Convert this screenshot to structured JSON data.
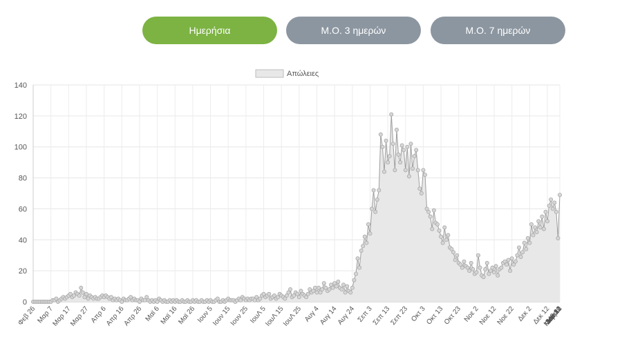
{
  "buttons": {
    "daily_label": "Ημερήσια",
    "ma3_label": "Μ.Ο. 3 ημερών",
    "ma7_label": "Μ.Ο. 7 ημερών",
    "active_color": "#7cb342",
    "inactive_color": "#8c96a0"
  },
  "chart_data": {
    "type": "line",
    "legend": [
      "Απώλειες"
    ],
    "legend_position": "top",
    "grid": true,
    "ylim": [
      0,
      140
    ],
    "yticks": [
      0,
      20,
      40,
      60,
      80,
      100,
      120,
      140
    ],
    "xlabel": "",
    "ylabel": "",
    "x_tick_labels": [
      "Φεβ 26",
      "Μαρ 7",
      "Μαρ 17",
      "Μαρ 27",
      "Απρ 6",
      "Απρ 16",
      "Απρ 26",
      "Μαϊ 6",
      "Μαϊ 16",
      "Μαϊ 26",
      "Ιουν 5",
      "Ιουν 15",
      "Ιουν 25",
      "ΙουΛ 5",
      "ΙουΛ 15",
      "ΙουΛ 25",
      "Αυγ 4",
      "Αυγ 14",
      "Αυγ 24",
      "Σεπ 3",
      "Σεπ 13",
      "Σεπ 23",
      "Οκτ 3",
      "Οκτ 13",
      "Οκτ 23",
      "Νοε 2",
      "Νοε 12",
      "Νοε 22",
      "Δεκ 2",
      "Δεκ 12",
      "Δεκ 22",
      "Ιαν 1",
      "Ιαν 11",
      "Ιαν 21",
      "Ιαν 31",
      "Φεβ 10",
      "Φεβ 20",
      "Μαρ 2",
      "Μαρ 12",
      "Μαρ 22"
    ],
    "series": [
      {
        "name": "Απώλειες",
        "fill": "#e8e8e8",
        "line_color": "#9e9e9e",
        "values": [
          0,
          0,
          0,
          0,
          0,
          0,
          0,
          0,
          0,
          0,
          0,
          1,
          1,
          2,
          0,
          1,
          2,
          3,
          2,
          3,
          4,
          5,
          3,
          4,
          6,
          5,
          4,
          9,
          6,
          3,
          5,
          2,
          4,
          3,
          2,
          3,
          2,
          2,
          3,
          4,
          3,
          4,
          3,
          2,
          3,
          1,
          2,
          1,
          2,
          1,
          0,
          2,
          1,
          1,
          2,
          3,
          1,
          2,
          1,
          1,
          0,
          2,
          1,
          1,
          3,
          1,
          0,
          1,
          0,
          1,
          0,
          2,
          1,
          0,
          1,
          0,
          0,
          1,
          0,
          1,
          0,
          1,
          0,
          0,
          1,
          0,
          0,
          1,
          0,
          0,
          1,
          0,
          1,
          0,
          0,
          1,
          0,
          0,
          1,
          0,
          1,
          0,
          0,
          1,
          2,
          0,
          0,
          1,
          0,
          1,
          2,
          1,
          1,
          1,
          0,
          1,
          2,
          1,
          3,
          2,
          1,
          2,
          1,
          2,
          2,
          1,
          3,
          1,
          2,
          4,
          5,
          3,
          4,
          5,
          2,
          3,
          4,
          2,
          3,
          5,
          4,
          3,
          2,
          4,
          6,
          8,
          3,
          4,
          6,
          5,
          3,
          7,
          5,
          4,
          3,
          5,
          8,
          6,
          7,
          9,
          6,
          9,
          6,
          8,
          12,
          9,
          7,
          8,
          11,
          9,
          12,
          10,
          13,
          9,
          8,
          11,
          6,
          10,
          7,
          6,
          9,
          14,
          18,
          28,
          22,
          33,
          36,
          42,
          38,
          50,
          44,
          60,
          72,
          58,
          66,
          72,
          108,
          100,
          84,
          104,
          90,
          94,
          121,
          102,
          85,
          111,
          95,
          90,
          101,
          98,
          85,
          100,
          81,
          102,
          86,
          94,
          98,
          85,
          73,
          70,
          85,
          82,
          60,
          58,
          55,
          47,
          59,
          51,
          50,
          46,
          42,
          38,
          48,
          40,
          43,
          35,
          34,
          32,
          27,
          30,
          25,
          24,
          22,
          26,
          23,
          22,
          20,
          25,
          21,
          18,
          19,
          30,
          22,
          17,
          16,
          21,
          25,
          18,
          20,
          22,
          19,
          23,
          17,
          21,
          22,
          25,
          26,
          24,
          27,
          20,
          28,
          24,
          26,
          30,
          35,
          29,
          32,
          38,
          34,
          41,
          38,
          50,
          43,
          48,
          45,
          52,
          48,
          55,
          47,
          58,
          52,
          62,
          66,
          60,
          64,
          58,
          41,
          69
        ]
      }
    ]
  }
}
